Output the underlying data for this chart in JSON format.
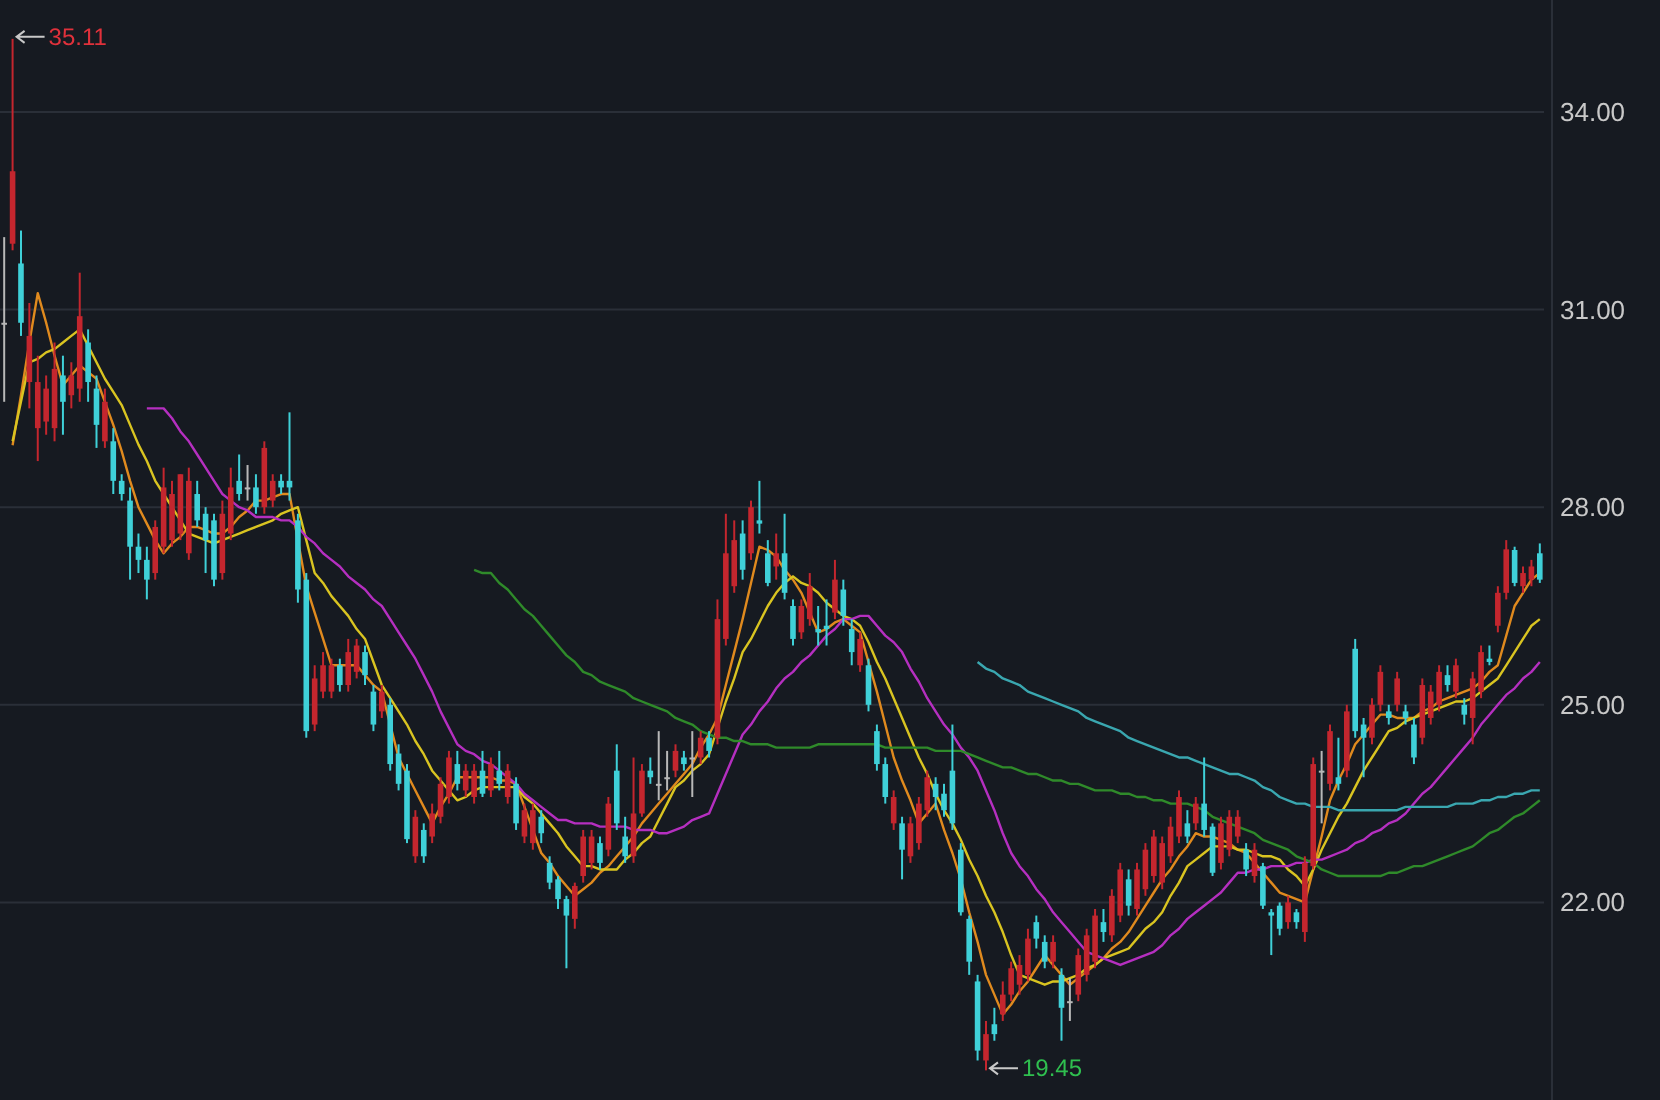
{
  "chart_data": {
    "type": "candlestick",
    "categories": [
      null,
      null,
      null,
      null,
      null,
      null,
      null,
      null,
      null,
      null,
      null,
      null,
      null,
      null,
      null,
      null,
      null,
      null,
      null,
      null,
      null,
      null,
      null,
      null,
      null,
      null,
      null,
      null,
      null,
      null,
      null,
      null,
      null,
      null,
      null,
      null,
      null,
      null,
      null,
      null,
      null,
      null,
      null,
      null,
      null,
      null,
      null,
      null,
      null,
      null,
      null,
      null,
      null,
      null,
      null,
      null,
      null,
      null,
      null,
      null,
      null,
      null,
      null,
      null,
      null,
      null,
      null,
      null,
      null,
      null,
      null,
      null,
      null,
      null,
      null,
      null,
      null,
      null,
      null,
      null,
      null,
      null,
      null,
      null,
      null,
      null,
      null,
      null,
      null,
      null,
      null,
      null,
      null,
      null,
      null,
      null,
      null,
      null,
      null,
      null,
      null,
      null,
      null,
      null,
      null,
      null,
      null,
      null,
      null,
      null,
      null,
      null,
      null,
      null,
      null,
      null,
      null,
      null,
      null,
      null,
      null,
      null,
      null,
      null,
      null,
      null,
      null,
      null,
      null,
      null,
      null,
      null,
      null,
      null,
      null,
      null,
      null,
      null,
      null,
      null,
      null,
      null,
      null,
      null,
      null,
      null,
      null,
      null,
      null,
      null,
      null,
      null,
      null,
      null,
      null,
      null,
      null,
      null,
      null,
      null,
      null,
      null,
      null,
      null,
      null,
      null,
      null,
      null,
      null,
      null,
      null,
      null,
      null,
      null,
      null,
      null,
      null,
      null,
      null,
      null,
      null,
      null,
      null,
      null
    ],
    "ohlc": [
      [
        30.8,
        32.1,
        29.6,
        30.8
      ],
      [
        32.0,
        35.11,
        31.9,
        33.1
      ],
      [
        31.7,
        32.2,
        30.6,
        30.8
      ],
      [
        29.9,
        31.1,
        29.5,
        30.6
      ],
      [
        29.2,
        30.3,
        28.7,
        29.9
      ],
      [
        29.3,
        30.0,
        29.1,
        29.8
      ],
      [
        29.2,
        30.5,
        29.0,
        30.1
      ],
      [
        30.0,
        30.3,
        29.1,
        29.6
      ],
      [
        29.7,
        30.2,
        29.5,
        30.0
      ],
      [
        29.8,
        31.56,
        29.6,
        30.9
      ],
      [
        30.5,
        30.7,
        29.6,
        29.9
      ],
      [
        29.8,
        30.0,
        28.9,
        29.25
      ],
      [
        29.0,
        29.8,
        28.9,
        29.6
      ],
      [
        29.0,
        29.2,
        28.2,
        28.4
      ],
      [
        28.4,
        28.5,
        28.1,
        28.2
      ],
      [
        28.1,
        28.3,
        26.9,
        27.4
      ],
      [
        27.4,
        27.6,
        27.0,
        27.2
      ],
      [
        27.2,
        27.4,
        26.6,
        26.9
      ],
      [
        27.0,
        27.8,
        26.9,
        27.7
      ],
      [
        27.4,
        28.6,
        27.3,
        28.3
      ],
      [
        27.5,
        28.4,
        27.4,
        28.2
      ],
      [
        27.6,
        28.5,
        27.5,
        28.5
      ],
      [
        27.3,
        28.6,
        27.2,
        28.4
      ],
      [
        28.2,
        28.4,
        27.7,
        27.8
      ],
      [
        27.9,
        28.0,
        27.0,
        27.5
      ],
      [
        27.8,
        27.9,
        26.8,
        26.9
      ],
      [
        27.0,
        28.1,
        26.9,
        27.9
      ],
      [
        27.6,
        28.6,
        27.5,
        28.3
      ],
      [
        28.4,
        28.8,
        28.1,
        28.2
      ],
      [
        28.3,
        28.64,
        28.1,
        28.3
      ],
      [
        28.3,
        28.5,
        27.9,
        28.0
      ],
      [
        28.0,
        29.0,
        27.9,
        28.9
      ],
      [
        28.1,
        28.5,
        28.0,
        28.4
      ],
      [
        28.4,
        28.5,
        28.2,
        28.3
      ],
      [
        28.4,
        29.44,
        28.1,
        28.3
      ],
      [
        27.8,
        27.9,
        26.55,
        26.75
      ],
      [
        26.9,
        27.0,
        24.5,
        24.6
      ],
      [
        24.7,
        25.6,
        24.6,
        25.4
      ],
      [
        25.2,
        25.8,
        25.1,
        25.6
      ],
      [
        25.2,
        25.7,
        25.1,
        25.6
      ],
      [
        25.6,
        25.7,
        25.2,
        25.3
      ],
      [
        25.3,
        26.0,
        25.2,
        25.8
      ],
      [
        25.5,
        26.0,
        25.4,
        25.9
      ],
      [
        25.8,
        25.9,
        25.3,
        25.45
      ],
      [
        25.2,
        25.3,
        24.6,
        24.7
      ],
      [
        24.9,
        25.3,
        24.8,
        25.2
      ],
      [
        25.0,
        25.1,
        24.0,
        24.1
      ],
      [
        24.26,
        24.4,
        23.7,
        23.8
      ],
      [
        24.0,
        24.1,
        22.9,
        22.96
      ],
      [
        22.7,
        23.4,
        22.6,
        23.3
      ],
      [
        23.1,
        23.2,
        22.6,
        22.7
      ],
      [
        23.0,
        23.5,
        22.9,
        23.35
      ],
      [
        23.3,
        23.9,
        23.2,
        23.8
      ],
      [
        23.6,
        24.3,
        23.5,
        24.2
      ],
      [
        24.1,
        24.3,
        23.7,
        23.8
      ],
      [
        23.7,
        24.1,
        23.6,
        24.0
      ],
      [
        23.6,
        24.1,
        23.5,
        24.0
      ],
      [
        24.0,
        24.3,
        23.6,
        23.65
      ],
      [
        23.7,
        24.2,
        23.6,
        24.1
      ],
      [
        24.0,
        24.3,
        23.7,
        23.8
      ],
      [
        23.6,
        24.1,
        23.5,
        24.0
      ],
      [
        23.8,
        23.9,
        23.1,
        23.2
      ],
      [
        23.0,
        23.5,
        22.9,
        23.4
      ],
      [
        22.9,
        23.5,
        22.8,
        23.4
      ],
      [
        23.3,
        23.4,
        22.9,
        23.05
      ],
      [
        22.6,
        22.7,
        22.2,
        22.3
      ],
      [
        22.35,
        22.4,
        21.9,
        22.05
      ],
      [
        22.05,
        22.1,
        21.0,
        21.8
      ],
      [
        21.75,
        22.3,
        21.6,
        22.25
      ],
      [
        22.4,
        23.1,
        22.3,
        23.0
      ],
      [
        22.6,
        23.1,
        22.5,
        23.0
      ],
      [
        22.9,
        23.0,
        22.5,
        22.6
      ],
      [
        22.8,
        23.6,
        22.7,
        23.5
      ],
      [
        24.0,
        24.4,
        23.1,
        23.2
      ],
      [
        23.0,
        23.3,
        22.6,
        22.7
      ],
      [
        22.7,
        24.2,
        22.6,
        23.35
      ],
      [
        23.35,
        24.1,
        23.3,
        24.0
      ],
      [
        24.0,
        24.2,
        23.8,
        23.9
      ],
      [
        23.8,
        24.6,
        23.55,
        23.8
      ],
      [
        23.9,
        24.3,
        23.7,
        23.9
      ],
      [
        24.0,
        24.4,
        23.9,
        24.3
      ],
      [
        24.2,
        24.3,
        24.0,
        24.1
      ],
      [
        24.2,
        24.6,
        23.6,
        24.2
      ],
      [
        24.2,
        24.6,
        24.1,
        24.5
      ],
      [
        24.5,
        24.6,
        24.2,
        24.3
      ],
      [
        24.5,
        26.6,
        24.4,
        26.3
      ],
      [
        26.0,
        27.9,
        25.9,
        27.3
      ],
      [
        26.8,
        27.8,
        26.7,
        27.5
      ],
      [
        27.6,
        27.8,
        26.9,
        27.05
      ],
      [
        27.3,
        28.1,
        27.2,
        28.0
      ],
      [
        27.8,
        28.4,
        27.6,
        27.75
      ],
      [
        27.3,
        27.5,
        26.8,
        26.85
      ],
      [
        27.1,
        27.6,
        26.9,
        27.3
      ],
      [
        27.3,
        27.9,
        26.6,
        26.7
      ],
      [
        26.5,
        26.6,
        25.9,
        26.0
      ],
      [
        26.1,
        26.6,
        26.0,
        26.5
      ],
      [
        26.3,
        27.0,
        26.2,
        26.8
      ],
      [
        26.15,
        26.5,
        25.9,
        26.1
      ],
      [
        26.2,
        26.6,
        25.9,
        26.15
      ],
      [
        26.4,
        27.2,
        26.3,
        26.9
      ],
      [
        26.75,
        26.9,
        26.2,
        26.35
      ],
      [
        26.15,
        26.3,
        25.6,
        25.8
      ],
      [
        25.6,
        26.1,
        25.5,
        26.0
      ],
      [
        25.6,
        25.7,
        24.9,
        25.0
      ],
      [
        24.6,
        24.7,
        24.0,
        24.1
      ],
      [
        24.1,
        24.2,
        23.5,
        23.6
      ],
      [
        23.2,
        23.7,
        23.1,
        23.6
      ],
      [
        23.2,
        23.3,
        22.35,
        22.8
      ],
      [
        22.7,
        23.3,
        22.6,
        23.2
      ],
      [
        22.9,
        23.6,
        22.8,
        23.5
      ],
      [
        23.4,
        24.0,
        23.3,
        23.9
      ],
      [
        23.8,
        23.9,
        23.4,
        23.6
      ],
      [
        23.65,
        23.8,
        23.3,
        23.4
      ],
      [
        24.0,
        24.7,
        23.1,
        23.2
      ],
      [
        22.8,
        22.9,
        21.8,
        21.85
      ],
      [
        21.75,
        21.8,
        20.9,
        21.1
      ],
      [
        20.8,
        20.9,
        19.6,
        19.75
      ],
      [
        19.6,
        20.2,
        19.45,
        20.0
      ],
      [
        20.15,
        20.4,
        19.9,
        20.0
      ],
      [
        20.3,
        20.8,
        20.2,
        20.6
      ],
      [
        20.6,
        21.1,
        20.5,
        21.0
      ],
      [
        20.75,
        21.2,
        20.6,
        21.05
      ],
      [
        20.9,
        21.6,
        20.8,
        21.45
      ],
      [
        21.7,
        21.8,
        21.3,
        21.45
      ],
      [
        21.4,
        21.5,
        21.0,
        21.1
      ],
      [
        21.1,
        21.5,
        21.0,
        21.4
      ],
      [
        20.9,
        21.0,
        19.9,
        20.4
      ],
      [
        20.5,
        20.85,
        20.2,
        20.5
      ],
      [
        20.6,
        21.3,
        20.5,
        21.2
      ],
      [
        20.9,
        21.6,
        20.8,
        21.5
      ],
      [
        21.1,
        21.9,
        21.0,
        21.8
      ],
      [
        21.7,
        21.9,
        21.4,
        21.55
      ],
      [
        21.5,
        22.2,
        21.4,
        22.1
      ],
      [
        21.8,
        22.6,
        21.7,
        22.5
      ],
      [
        22.35,
        22.5,
        21.8,
        21.95
      ],
      [
        21.9,
        22.6,
        21.8,
        22.5
      ],
      [
        22.2,
        22.9,
        22.1,
        22.8
      ],
      [
        22.4,
        23.1,
        22.3,
        23.0
      ],
      [
        22.3,
        23.0,
        22.2,
        22.9
      ],
      [
        22.7,
        23.3,
        22.6,
        23.15
      ],
      [
        23.0,
        23.7,
        22.9,
        23.6
      ],
      [
        23.2,
        23.4,
        22.9,
        23.0
      ],
      [
        23.2,
        23.6,
        23.1,
        23.5
      ],
      [
        23.5,
        24.2,
        23.0,
        23.1
      ],
      [
        23.15,
        23.2,
        22.4,
        22.45
      ],
      [
        22.6,
        23.3,
        22.5,
        23.2
      ],
      [
        22.8,
        23.4,
        22.7,
        23.3
      ],
      [
        23.0,
        23.4,
        22.9,
        23.3
      ],
      [
        22.8,
        22.9,
        22.4,
        22.5
      ],
      [
        22.4,
        22.9,
        22.3,
        22.8
      ],
      [
        22.55,
        22.6,
        21.9,
        21.95
      ],
      [
        21.85,
        21.9,
        21.2,
        21.8
      ],
      [
        21.95,
        22.0,
        21.5,
        21.6
      ],
      [
        21.7,
        22.1,
        21.6,
        22.0
      ],
      [
        21.85,
        21.9,
        21.6,
        21.7
      ],
      [
        21.55,
        22.7,
        21.4,
        22.6
      ],
      [
        22.55,
        24.2,
        22.5,
        24.1
      ],
      [
        24.0,
        24.3,
        23.2,
        24.0
      ],
      [
        23.8,
        24.7,
        23.7,
        24.6
      ],
      [
        23.9,
        24.5,
        23.7,
        23.8
      ],
      [
        24.0,
        25.0,
        23.9,
        24.9
      ],
      [
        25.85,
        26.0,
        24.5,
        24.6
      ],
      [
        24.7,
        24.8,
        23.9,
        24.5
      ],
      [
        24.5,
        25.1,
        24.4,
        25.0
      ],
      [
        25.0,
        25.6,
        24.9,
        25.5
      ],
      [
        24.9,
        25.0,
        24.7,
        24.8
      ],
      [
        25.0,
        25.5,
        24.9,
        25.4
      ],
      [
        24.9,
        25.0,
        24.7,
        24.8
      ],
      [
        24.7,
        24.8,
        24.1,
        24.2
      ],
      [
        24.5,
        25.4,
        24.4,
        25.3
      ],
      [
        24.8,
        25.3,
        24.7,
        25.2
      ],
      [
        25.0,
        25.6,
        24.9,
        25.5
      ],
      [
        25.45,
        25.6,
        25.2,
        25.3
      ],
      [
        25.2,
        25.7,
        25.1,
        25.6
      ],
      [
        25.0,
        25.1,
        24.7,
        24.85
      ],
      [
        24.8,
        25.5,
        24.4,
        25.4
      ],
      [
        25.2,
        25.9,
        25.1,
        25.8
      ],
      [
        25.7,
        25.9,
        25.6,
        25.65
      ],
      [
        26.2,
        26.8,
        26.1,
        26.7
      ],
      [
        26.7,
        27.5,
        26.6,
        27.36
      ],
      [
        27.35,
        27.4,
        26.8,
        26.85
      ],
      [
        26.8,
        27.1,
        26.7,
        27.0
      ],
      [
        26.9,
        27.2,
        26.8,
        27.1
      ],
      [
        27.3,
        27.45,
        26.85,
        26.9
      ]
    ],
    "series": [
      {
        "type": "line",
        "color": "#e08a1e",
        "values": [
          null,
          28.94,
          29.7,
          30.5,
          31.25,
          30.8,
          30.3,
          29.85,
          30.0,
          30.15,
          30.05,
          29.95,
          29.6,
          29.25,
          28.85,
          28.4,
          28.0,
          27.75,
          27.5,
          27.3,
          27.45,
          27.55,
          27.7,
          27.7,
          27.65,
          27.6,
          27.6,
          27.7,
          27.85,
          27.95,
          28.1,
          28.1,
          28.15,
          28.2,
          28.2,
          27.5,
          26.8,
          26.4,
          26.0,
          25.6,
          25.6,
          25.6,
          25.6,
          25.45,
          25.3,
          25.2,
          24.7,
          24.2,
          23.95,
          23.7,
          23.45,
          23.2,
          23.45,
          23.65,
          23.9,
          23.9,
          23.9,
          23.9,
          23.9,
          23.85,
          23.85,
          23.8,
          23.45,
          23.1,
          22.75,
          22.6,
          22.4,
          22.25,
          22.1,
          22.2,
          22.3,
          22.45,
          22.55,
          22.7,
          22.85,
          23.0,
          23.2,
          23.35,
          23.5,
          23.65,
          23.8,
          23.95,
          24.1,
          24.35,
          24.55,
          24.8,
          25.3,
          25.8,
          26.3,
          26.85,
          27.4,
          27.35,
          27.25,
          27.05,
          26.9,
          26.7,
          26.4,
          26.1,
          26.15,
          26.25,
          26.3,
          26.2,
          26.1,
          25.65,
          25.2,
          24.7,
          24.2,
          23.85,
          23.55,
          23.2,
          23.35,
          23.5,
          23.1,
          22.75,
          22.35,
          21.85,
          21.4,
          20.9,
          20.6,
          20.3,
          20.45,
          20.65,
          20.8,
          21.0,
          21.2,
          21.05,
          20.9,
          20.75,
          20.85,
          20.95,
          21.05,
          21.15,
          21.3,
          21.4,
          21.55,
          21.75,
          21.95,
          22.15,
          22.35,
          22.5,
          22.7,
          22.85,
          23.05,
          23.0,
          23.0,
          22.95,
          22.9,
          22.8,
          22.75,
          22.6,
          22.45,
          22.3,
          22.15,
          22.1,
          22.05,
          22.0,
          22.5,
          23.0,
          23.55,
          23.85,
          24.1,
          24.4,
          24.55,
          24.7,
          24.85,
          24.85,
          24.8,
          24.8,
          24.8,
          24.9,
          24.95,
          25.05,
          25.1,
          25.15,
          25.2,
          25.25,
          25.35,
          25.5,
          25.6,
          26.05,
          26.5,
          26.7,
          26.9,
          27.0
        ]
      },
      {
        "type": "line",
        "color": "#d9c421",
        "values": [
          null,
          29.0,
          29.6,
          30.2,
          30.25,
          30.35,
          30.4,
          30.5,
          30.6,
          30.7,
          30.45,
          30.2,
          29.95,
          29.75,
          29.55,
          29.25,
          28.95,
          28.7,
          28.4,
          28.2,
          28.0,
          27.8,
          27.6,
          27.55,
          27.5,
          27.45,
          27.5,
          27.55,
          27.6,
          27.65,
          27.7,
          27.75,
          27.8,
          27.9,
          27.95,
          28.0,
          27.5,
          27.0,
          26.85,
          26.65,
          26.5,
          26.35,
          26.15,
          26.0,
          25.65,
          25.3,
          25.1,
          24.9,
          24.7,
          24.45,
          24.25,
          24.0,
          23.85,
          23.7,
          23.55,
          23.6,
          23.7,
          23.75,
          23.75,
          23.75,
          23.75,
          23.75,
          23.6,
          23.5,
          23.35,
          23.2,
          23.05,
          22.85,
          22.7,
          22.55,
          22.55,
          22.5,
          22.5,
          22.5,
          22.65,
          22.75,
          22.9,
          23.0,
          23.25,
          23.5,
          23.75,
          23.85,
          24.0,
          24.1,
          24.25,
          24.65,
          25.05,
          25.4,
          25.8,
          26.0,
          26.25,
          26.5,
          26.7,
          26.85,
          26.95,
          26.85,
          26.8,
          26.7,
          26.55,
          26.45,
          26.35,
          26.3,
          26.2,
          25.95,
          25.65,
          25.4,
          25.1,
          24.8,
          24.5,
          24.2,
          23.95,
          23.65,
          23.4,
          23.2,
          22.95,
          22.65,
          22.4,
          22.1,
          21.85,
          21.55,
          21.2,
          20.9,
          20.85,
          20.8,
          20.75,
          20.8,
          20.8,
          20.85,
          20.9,
          21.0,
          21.05,
          21.15,
          21.2,
          21.25,
          21.3,
          21.45,
          21.6,
          21.7,
          21.85,
          22.1,
          22.3,
          22.55,
          22.65,
          22.75,
          22.85,
          22.85,
          22.85,
          22.8,
          22.8,
          22.75,
          22.7,
          22.7,
          22.65,
          22.5,
          22.4,
          22.25,
          22.5,
          22.8,
          23.05,
          23.3,
          23.5,
          23.75,
          24.0,
          24.2,
          24.4,
          24.6,
          24.65,
          24.75,
          24.8,
          24.85,
          24.9,
          24.95,
          25.0,
          25.05,
          25.05,
          25.1,
          25.2,
          25.3,
          25.4,
          25.6,
          25.8,
          26.0,
          26.2,
          26.3
        ]
      },
      {
        "type": "line",
        "color": "#b52fc0",
        "values": [
          null,
          null,
          null,
          null,
          null,
          null,
          null,
          null,
          null,
          null,
          null,
          null,
          null,
          null,
          null,
          null,
          null,
          29.5,
          29.5,
          29.5,
          29.35,
          29.15,
          29.0,
          28.8,
          28.6,
          28.4,
          28.2,
          28.1,
          28.0,
          27.95,
          27.85,
          27.85,
          27.85,
          27.8,
          27.8,
          27.7,
          27.55,
          27.45,
          27.3,
          27.2,
          27.1,
          26.95,
          26.85,
          26.75,
          26.6,
          26.5,
          26.3,
          26.1,
          25.9,
          25.7,
          25.45,
          25.2,
          24.9,
          24.65,
          24.4,
          24.3,
          24.25,
          24.15,
          24.1,
          24.0,
          23.9,
          23.8,
          23.65,
          23.55,
          23.45,
          23.35,
          23.25,
          23.25,
          23.2,
          23.2,
          23.2,
          23.15,
          23.15,
          23.15,
          23.15,
          23.1,
          23.1,
          23.1,
          23.05,
          23.05,
          23.1,
          23.15,
          23.25,
          23.3,
          23.35,
          23.65,
          23.95,
          24.25,
          24.55,
          24.7,
          24.9,
          25.05,
          25.25,
          25.4,
          25.5,
          25.65,
          25.75,
          25.9,
          26.05,
          26.15,
          26.3,
          26.3,
          26.35,
          26.35,
          26.2,
          26.05,
          25.95,
          25.8,
          25.55,
          25.35,
          25.1,
          24.9,
          24.7,
          24.55,
          24.35,
          24.2,
          24.0,
          23.7,
          23.4,
          23.05,
          22.75,
          22.55,
          22.4,
          22.2,
          22.05,
          21.85,
          21.7,
          21.55,
          21.4,
          21.25,
          21.2,
          21.15,
          21.1,
          21.05,
          21.1,
          21.15,
          21.2,
          21.25,
          21.35,
          21.5,
          21.6,
          21.75,
          21.85,
          21.95,
          22.05,
          22.15,
          22.3,
          22.45,
          22.45,
          22.5,
          22.5,
          22.55,
          22.55,
          22.55,
          22.6,
          22.6,
          22.65,
          22.65,
          22.7,
          22.75,
          22.8,
          22.9,
          22.95,
          23.05,
          23.1,
          23.2,
          23.25,
          23.35,
          23.5,
          23.65,
          23.75,
          23.9,
          24.05,
          24.2,
          24.35,
          24.5,
          24.7,
          24.85,
          25.0,
          25.15,
          25.25,
          25.4,
          25.5,
          25.65
        ]
      },
      {
        "type": "line",
        "color": "#2f8a2a",
        "values": [
          null,
          null,
          null,
          null,
          null,
          null,
          null,
          null,
          null,
          null,
          null,
          null,
          null,
          null,
          null,
          null,
          null,
          null,
          null,
          null,
          null,
          null,
          null,
          null,
          null,
          null,
          null,
          null,
          null,
          null,
          null,
          null,
          null,
          null,
          null,
          null,
          null,
          null,
          null,
          null,
          null,
          null,
          null,
          null,
          null,
          null,
          null,
          null,
          null,
          null,
          null,
          null,
          null,
          null,
          null,
          null,
          27.05,
          27.0,
          27.0,
          26.85,
          26.75,
          26.6,
          26.45,
          26.35,
          26.2,
          26.05,
          25.9,
          25.75,
          25.65,
          25.5,
          25.45,
          25.35,
          25.3,
          25.25,
          25.2,
          25.1,
          25.05,
          25.0,
          24.95,
          24.9,
          24.8,
          24.75,
          24.7,
          24.6,
          24.55,
          24.5,
          24.5,
          24.45,
          24.45,
          24.4,
          24.4,
          24.4,
          24.35,
          24.35,
          24.35,
          24.35,
          24.35,
          24.4,
          24.4,
          24.4,
          24.4,
          24.4,
          24.4,
          24.4,
          24.4,
          24.35,
          24.35,
          24.35,
          24.35,
          24.35,
          24.35,
          24.3,
          24.3,
          24.3,
          24.3,
          24.25,
          24.2,
          24.15,
          24.1,
          24.05,
          24.05,
          24.0,
          23.95,
          23.95,
          23.9,
          23.85,
          23.85,
          23.8,
          23.8,
          23.75,
          23.7,
          23.7,
          23.7,
          23.65,
          23.65,
          23.6,
          23.6,
          23.55,
          23.55,
          23.5,
          23.5,
          23.5,
          23.45,
          23.4,
          23.3,
          23.25,
          23.2,
          23.15,
          23.1,
          23.05,
          22.95,
          22.9,
          22.85,
          22.8,
          22.7,
          22.65,
          22.6,
          22.5,
          22.45,
          22.4,
          22.4,
          22.4,
          22.4,
          22.4,
          22.4,
          22.45,
          22.45,
          22.5,
          22.55,
          22.55,
          22.6,
          22.65,
          22.7,
          22.75,
          22.8,
          22.85,
          22.95,
          23.05,
          23.1,
          23.2,
          23.3,
          23.35,
          23.45,
          23.55
        ]
      },
      {
        "type": "line",
        "color": "#3aa7b0",
        "values": [
          null,
          null,
          null,
          null,
          null,
          null,
          null,
          null,
          null,
          null,
          null,
          null,
          null,
          null,
          null,
          null,
          null,
          null,
          null,
          null,
          null,
          null,
          null,
          null,
          null,
          null,
          null,
          null,
          null,
          null,
          null,
          null,
          null,
          null,
          null,
          null,
          null,
          null,
          null,
          null,
          null,
          null,
          null,
          null,
          null,
          null,
          null,
          null,
          null,
          null,
          null,
          null,
          null,
          null,
          null,
          null,
          null,
          null,
          null,
          null,
          null,
          null,
          null,
          null,
          null,
          null,
          null,
          null,
          null,
          null,
          null,
          null,
          null,
          null,
          null,
          null,
          null,
          null,
          null,
          null,
          null,
          null,
          null,
          null,
          null,
          null,
          null,
          null,
          null,
          null,
          null,
          null,
          null,
          null,
          null,
          null,
          null,
          null,
          null,
          null,
          null,
          null,
          null,
          null,
          null,
          null,
          null,
          null,
          null,
          null,
          null,
          null,
          null,
          null,
          null,
          null,
          25.65,
          25.55,
          25.5,
          25.4,
          25.35,
          25.3,
          25.2,
          25.15,
          25.1,
          25.05,
          25.0,
          24.95,
          24.9,
          24.8,
          24.75,
          24.7,
          24.65,
          24.6,
          24.5,
          24.45,
          24.4,
          24.35,
          24.3,
          24.25,
          24.2,
          24.2,
          24.15,
          24.1,
          24.05,
          24.0,
          23.95,
          23.95,
          23.9,
          23.85,
          23.75,
          23.7,
          23.6,
          23.55,
          23.5,
          23.5,
          23.45,
          23.45,
          23.45,
          23.4,
          23.4,
          23.4,
          23.4,
          23.4,
          23.4,
          23.4,
          23.4,
          23.45,
          23.45,
          23.45,
          23.45,
          23.45,
          23.45,
          23.5,
          23.5,
          23.5,
          23.55,
          23.55,
          23.6,
          23.6,
          23.65,
          23.65,
          23.7,
          23.7
        ]
      }
    ],
    "ylim": [
      19.0,
      35.7
    ],
    "yticks": [
      {
        "value": 22,
        "label": "22.00"
      },
      {
        "value": 25,
        "label": "25.00"
      },
      {
        "value": 28,
        "label": "28.00"
      },
      {
        "value": 31,
        "label": "31.00"
      },
      {
        "value": 34,
        "label": "34.00"
      }
    ],
    "tick_labels": "y",
    "grid": "y",
    "annotations": [
      "35.11",
      "19.45"
    ]
  }
}
